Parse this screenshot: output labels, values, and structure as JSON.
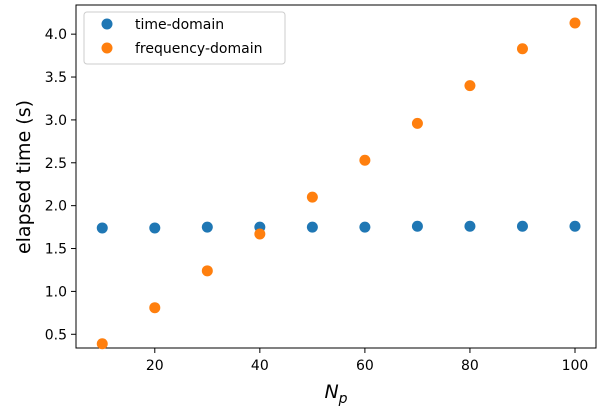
{
  "chart_data": {
    "type": "scatter",
    "title": "",
    "xlabel": "N",
    "xlabel_subscript": "p",
    "ylabel": "elapsed time (s)",
    "xlim": [
      5,
      104
    ],
    "ylim": [
      0.34,
      4.34
    ],
    "xticks": [
      20,
      40,
      60,
      80,
      100
    ],
    "yticks": [
      0.5,
      1.0,
      1.5,
      2.0,
      2.5,
      3.0,
      3.5,
      4.0
    ],
    "ytick_labels": [
      "0.5",
      "1.0",
      "1.5",
      "2.0",
      "2.5",
      "3.0",
      "3.5",
      "4.0"
    ],
    "grid": false,
    "legend_position": "top-left",
    "series": [
      {
        "name": "time-domain",
        "color": "#1f77b4",
        "x": [
          10,
          20,
          30,
          40,
          50,
          60,
          70,
          80,
          90,
          100
        ],
        "y": [
          1.74,
          1.74,
          1.75,
          1.75,
          1.75,
          1.75,
          1.76,
          1.76,
          1.76,
          1.76
        ]
      },
      {
        "name": "frequency-domain",
        "color": "#ff7f0e",
        "x": [
          10,
          20,
          30,
          40,
          50,
          60,
          70,
          80,
          90,
          100
        ],
        "y": [
          0.39,
          0.81,
          1.24,
          1.67,
          2.1,
          2.53,
          2.96,
          3.4,
          3.83,
          4.13
        ]
      }
    ]
  }
}
